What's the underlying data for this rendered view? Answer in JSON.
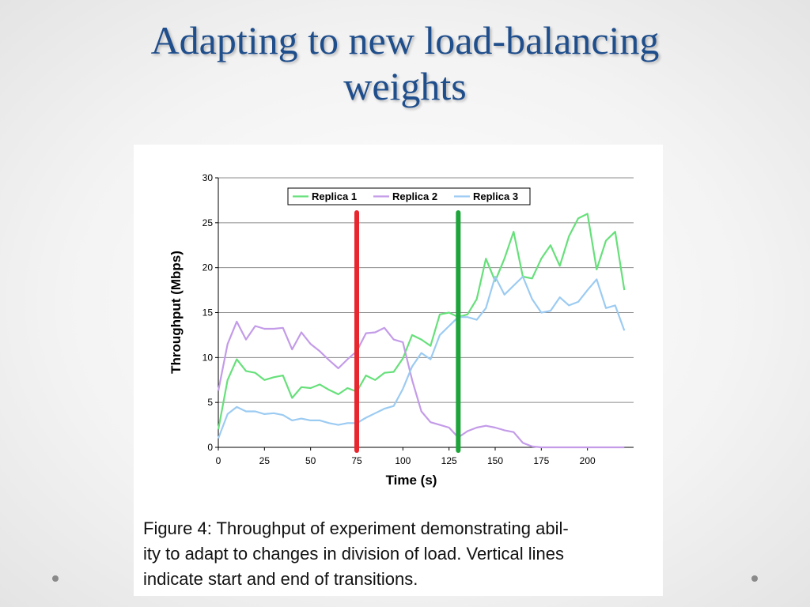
{
  "slide": {
    "title_line1": "Adapting to new load-balancing",
    "title_line2": "weights"
  },
  "caption": {
    "line1": "Figure 4:  Throughput of experiment demonstrating abil-",
    "line2": "ity to adapt to changes in division of load.  Vertical lines",
    "line3": "indicate start and end of transitions."
  },
  "chart_data": {
    "type": "line",
    "xlabel": "Time (s)",
    "ylabel": "Throughput (Mbps)",
    "xlim": [
      0,
      225
    ],
    "ylim": [
      0,
      30
    ],
    "xticks": [
      0,
      25,
      50,
      75,
      100,
      125,
      150,
      175,
      200
    ],
    "yticks": [
      0,
      5,
      10,
      15,
      20,
      25,
      30
    ],
    "grid": true,
    "legend_position": "top",
    "x": [
      0,
      5,
      10,
      15,
      20,
      25,
      30,
      35,
      40,
      45,
      50,
      55,
      60,
      65,
      70,
      75,
      80,
      85,
      90,
      95,
      100,
      105,
      110,
      115,
      120,
      125,
      130,
      135,
      140,
      145,
      150,
      155,
      160,
      165,
      170,
      175,
      180,
      185,
      190,
      195,
      200,
      205,
      210,
      215,
      220
    ],
    "series": [
      {
        "name": "Replica 1",
        "color": "#66e07a",
        "values": [
          2,
          7.5,
          9.8,
          8.5,
          8.3,
          7.5,
          7.8,
          8,
          5.5,
          6.7,
          6.6,
          7,
          6.4,
          5.9,
          6.6,
          6.2,
          8,
          7.5,
          8.3,
          8.4,
          9.9,
          12.5,
          12,
          11.3,
          14.8,
          15,
          14.5,
          14.8,
          16.5,
          21,
          18.5,
          21,
          24,
          19,
          18.8,
          21,
          22.5,
          20.2,
          23.5,
          25.5,
          26,
          19.8,
          23,
          24,
          17.5
        ]
      },
      {
        "name": "Replica 2",
        "color": "#c39be8",
        "values": [
          6.3,
          11.5,
          14,
          12,
          13.5,
          13.2,
          13.2,
          13.3,
          10.9,
          12.8,
          11.5,
          10.7,
          9.7,
          8.8,
          9.8,
          10.7,
          12.7,
          12.8,
          13.3,
          12,
          11.7,
          7.5,
          4,
          2.8,
          2.5,
          2.2,
          1.1,
          1.8,
          2.2,
          2.4,
          2.2,
          1.9,
          1.7,
          0.5,
          0.1,
          0,
          0,
          0,
          0,
          0,
          0,
          0,
          0,
          0,
          0
        ]
      },
      {
        "name": "Replica 3",
        "color": "#9ccbf2",
        "values": [
          1,
          3.7,
          4.5,
          4,
          4,
          3.7,
          3.8,
          3.6,
          3,
          3.2,
          3,
          3,
          2.7,
          2.5,
          2.7,
          2.7,
          3.3,
          3.8,
          4.3,
          4.6,
          6.5,
          9,
          10.5,
          9.8,
          12.5,
          13.5,
          14.5,
          14.5,
          14.2,
          15.5,
          19,
          17,
          18,
          19,
          16.5,
          15,
          15.2,
          16.7,
          15.8,
          16.2,
          17.5,
          18.7,
          15.5,
          15.8,
          13
        ]
      }
    ],
    "vertical_lines": [
      {
        "x": 75,
        "color": "#e8262e"
      },
      {
        "x": 130,
        "color": "#1fa43c"
      }
    ]
  }
}
